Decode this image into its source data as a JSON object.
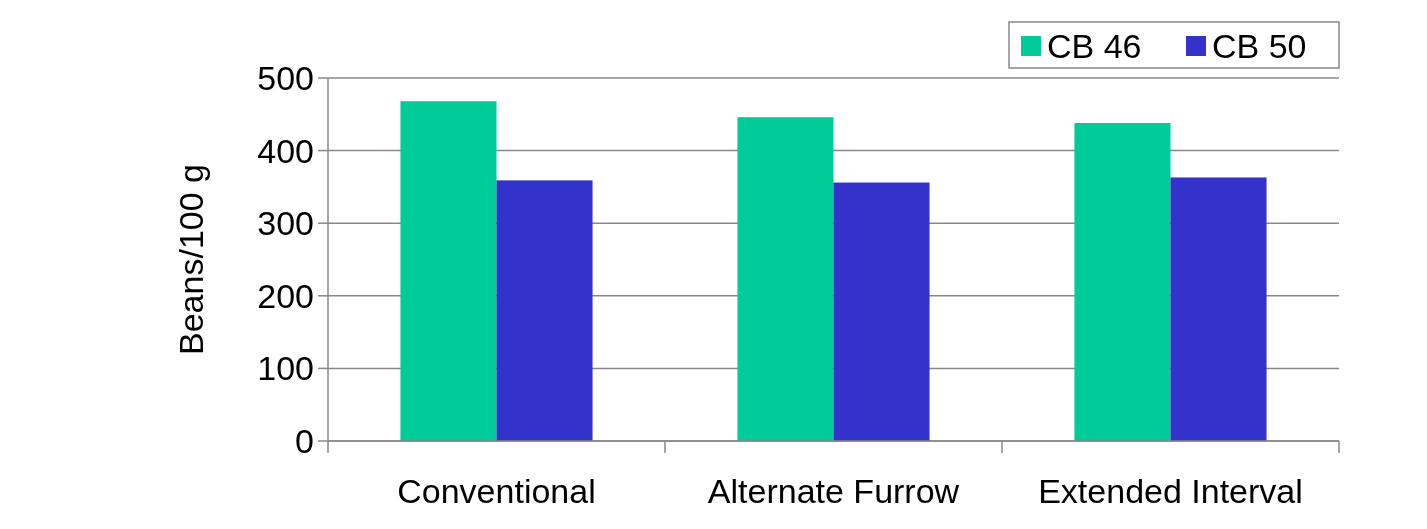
{
  "chart_data": {
    "type": "bar",
    "ylabel": "Beans/100 g",
    "categories": [
      "Conventional",
      "Alternate Furrow",
      "Extended Interval"
    ],
    "series": [
      {
        "name": "CB 46",
        "color": "#00cc99",
        "values": [
          468,
          446,
          438
        ]
      },
      {
        "name": "CB 50",
        "color": "#3333cc",
        "values": [
          359,
          356,
          363
        ]
      }
    ],
    "ylim": [
      0,
      500
    ],
    "yticks": [
      0,
      100,
      200,
      300,
      400,
      500
    ],
    "grid": "y",
    "legend": "top right"
  }
}
